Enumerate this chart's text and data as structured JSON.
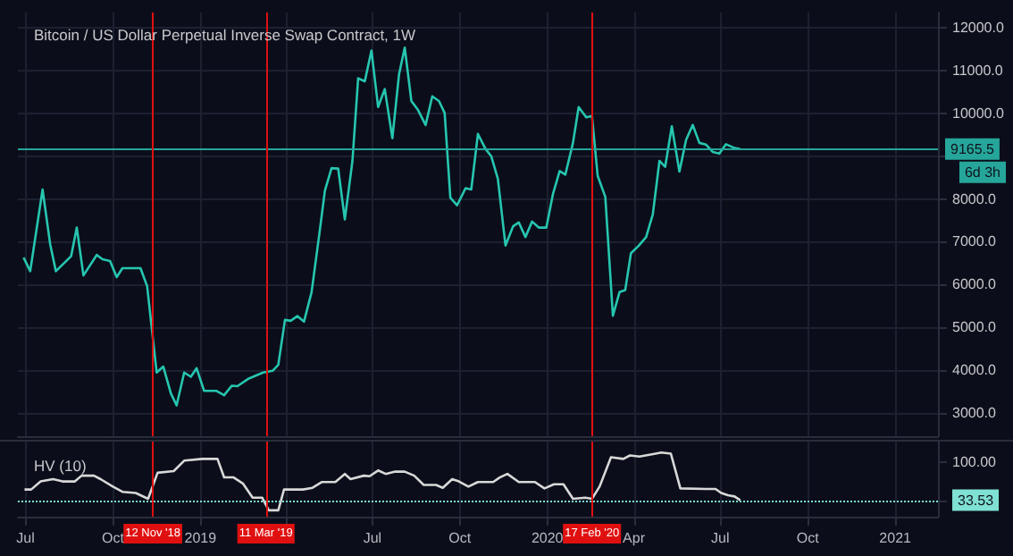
{
  "chart_data": [
    {
      "type": "line",
      "title": "Bitcoin / US Dollar Perpetual Inverse Swap Contract, 1W",
      "marker": "none",
      "grid": true,
      "tick_labels": "y",
      "x": [
        "2018-06-29",
        "2018-07-06",
        "2018-07-19",
        "2018-07-27",
        "2018-08-02",
        "2018-08-18",
        "2018-08-24",
        "2018-08-31",
        "2018-09-14",
        "2018-09-20",
        "2018-09-28",
        "2018-10-05",
        "2018-10-11",
        "2018-10-30",
        "2018-11-06",
        "2018-11-16",
        "2018-11-23",
        "2018-12-01",
        "2018-12-07",
        "2018-12-15",
        "2018-12-22",
        "2018-12-28",
        "2019-01-05",
        "2019-01-18",
        "2019-01-26",
        "2019-02-03",
        "2019-02-09",
        "2019-02-21",
        "2019-03-08",
        "2019-03-18",
        "2019-03-24",
        "2019-03-31",
        "2019-04-06",
        "2019-04-13",
        "2019-04-20",
        "2019-04-28",
        "2019-05-06",
        "2019-05-12",
        "2019-05-19",
        "2019-05-26",
        "2019-06-02",
        "2019-06-10",
        "2019-06-16",
        "2019-06-23",
        "2019-06-30",
        "2019-07-07",
        "2019-07-14",
        "2019-07-22",
        "2019-07-29",
        "2019-08-04",
        "2019-08-11",
        "2019-08-18",
        "2019-08-26",
        "2019-09-02",
        "2019-09-09",
        "2019-09-15",
        "2019-09-21",
        "2019-09-28",
        "2019-10-07",
        "2019-10-13",
        "2019-10-20",
        "2019-10-28",
        "2019-11-03",
        "2019-11-10",
        "2019-11-18",
        "2019-11-26",
        "2019-12-02",
        "2019-12-09",
        "2019-12-16",
        "2019-12-23",
        "2019-12-31",
        "2020-01-07",
        "2020-01-14",
        "2020-01-20",
        "2020-01-28",
        "2020-02-03",
        "2020-02-11",
        "2020-02-17",
        "2020-02-23",
        "2020-03-02",
        "2020-03-10",
        "2020-03-17",
        "2020-03-23",
        "2020-03-29",
        "2020-04-06",
        "2020-04-14",
        "2020-04-21",
        "2020-04-28",
        "2020-05-04",
        "2020-05-11",
        "2020-05-19",
        "2020-05-26",
        "2020-06-02",
        "2020-06-09",
        "2020-06-16",
        "2020-06-23",
        "2020-06-30",
        "2020-07-07",
        "2020-07-15",
        "2020-07-22"
      ],
      "series": [
        {
          "color": "#26c6b0",
          "values": [
            6630,
            6310,
            8220,
            6940,
            6310,
            6660,
            7330,
            6210,
            6690,
            6590,
            6550,
            6170,
            6380,
            6380,
            5960,
            3940,
            4080,
            3450,
            3170,
            3940,
            3840,
            4040,
            3510,
            3510,
            3410,
            3630,
            3620,
            3800,
            3940,
            3980,
            4120,
            5170,
            5150,
            5260,
            5130,
            5820,
            7150,
            8190,
            8720,
            8710,
            7520,
            8890,
            10820,
            10750,
            11470,
            10150,
            10570,
            9420,
            10910,
            11540,
            10290,
            10080,
            9730,
            10400,
            10290,
            10010,
            8030,
            7850,
            8250,
            8220,
            9520,
            9170,
            9000,
            8470,
            6910,
            7360,
            7450,
            7110,
            7470,
            7330,
            7330,
            8120,
            8650,
            8570,
            9310,
            10150,
            9910,
            9940,
            8540,
            8050,
            5270,
            5820,
            5870,
            6730,
            6900,
            7110,
            7640,
            8890,
            8750,
            9700,
            8640,
            9380,
            9730,
            9310,
            9270,
            9100,
            9060,
            9280,
            9200,
            9165.5
          ]
        }
      ],
      "xlim": [
        "2018-06-23",
        "2021-02-15"
      ],
      "xticks": [
        {
          "value": "2018-07-01",
          "label": null
        },
        {
          "value": "2018-10-01",
          "label": null
        },
        {
          "value": "2019-01-01",
          "label": null
        },
        {
          "value": "2019-04-01",
          "label": null
        },
        {
          "value": "2019-07-01",
          "label": null
        },
        {
          "value": "2019-10-01",
          "label": null
        },
        {
          "value": "2020-01-01",
          "label": null
        },
        {
          "value": "2020-04-01",
          "label": null
        },
        {
          "value": "2020-07-01",
          "label": null
        },
        {
          "value": "2020-10-01",
          "label": null
        },
        {
          "value": "2021-01-01",
          "label": null
        }
      ],
      "ylim": [
        2450,
        12360
      ],
      "yticks": [
        {
          "value": 3000,
          "label": "3000.0"
        },
        {
          "value": 4000,
          "label": "4000.0"
        },
        {
          "value": 5000,
          "label": "5000.0"
        },
        {
          "value": 6000,
          "label": "6000.0"
        },
        {
          "value": 7000,
          "label": "7000.0"
        },
        {
          "value": 8000,
          "label": "8000.0"
        },
        {
          "value": 9000,
          "label": null
        },
        {
          "value": 10000,
          "label": "10000.0"
        },
        {
          "value": 11000,
          "label": "11000.0"
        },
        {
          "value": 12000,
          "label": "12000.0"
        }
      ],
      "ref_lines": [
        {
          "axis": "y",
          "value": 9165.5,
          "label": "9165.5",
          "color": "#26a69a"
        },
        {
          "axis": "x",
          "value": "2018-11-12",
          "color": "#e01010"
        },
        {
          "axis": "x",
          "value": "2019-03-11",
          "color": "#e01010"
        },
        {
          "axis": "x",
          "value": "2020-02-17",
          "color": "#e01010"
        }
      ],
      "annotations": [
        "6d 3h"
      ]
    },
    {
      "type": "line",
      "title": "HV (10)",
      "marker": "none",
      "grid": "x",
      "x": [
        "2018-06-30",
        "2018-07-07",
        "2018-07-17",
        "2018-07-30",
        "2018-08-09",
        "2018-08-22",
        "2018-08-29",
        "2018-09-11",
        "2018-09-18",
        "2018-10-01",
        "2018-10-11",
        "2018-10-25",
        "2018-11-07",
        "2018-11-17",
        "2018-12-04",
        "2018-12-15",
        "2019-01-03",
        "2019-01-19",
        "2019-01-26",
        "2019-02-05",
        "2019-02-15",
        "2019-02-25",
        "2019-03-07",
        "2019-03-14",
        "2019-03-24",
        "2019-03-30",
        "2019-04-19",
        "2019-04-29",
        "2019-05-09",
        "2019-05-23",
        "2019-06-02",
        "2019-06-08",
        "2019-06-22",
        "2019-06-28",
        "2019-07-07",
        "2019-07-15",
        "2019-07-25",
        "2019-08-04",
        "2019-08-14",
        "2019-08-24",
        "2019-09-06",
        "2019-09-13",
        "2019-09-23",
        "2019-09-30",
        "2019-10-10",
        "2019-10-20",
        "2019-11-05",
        "2019-11-12",
        "2019-11-20",
        "2019-12-02",
        "2019-12-19",
        "2019-12-29",
        "2020-01-08",
        "2020-01-18",
        "2020-01-28",
        "2020-02-10",
        "2020-02-17",
        "2020-02-25",
        "2020-03-08",
        "2020-03-21",
        "2020-03-28",
        "2020-04-07",
        "2020-04-20",
        "2020-04-30",
        "2020-05-10",
        "2020-05-20",
        "2020-06-16",
        "2020-06-26",
        "2020-07-02",
        "2020-07-09",
        "2020-07-16",
        "2020-07-22"
      ],
      "series": [
        {
          "color": "#d8d8d8",
          "values": [
            52,
            52,
            66,
            70,
            66,
            66,
            76,
            76,
            70,
            57,
            48,
            46,
            36,
            81,
            84,
            102,
            105,
            105,
            73,
            73,
            62,
            38,
            38,
            16,
            16,
            52,
            52,
            55,
            65,
            65,
            79,
            70,
            76,
            75,
            85,
            79,
            83,
            83,
            76,
            60,
            60,
            55,
            70,
            66,
            57,
            65,
            65,
            73,
            79,
            65,
            65,
            54,
            61,
            61,
            36,
            38,
            36,
            57,
            108,
            105,
            111,
            109,
            113,
            116,
            114,
            54,
            53,
            53,
            46,
            42,
            40,
            33.53
          ]
        }
      ],
      "xlim": [
        "2018-06-23",
        "2021-02-15"
      ],
      "xticks": [
        {
          "value": "2018-07-01",
          "label": "Jul"
        },
        {
          "value": "2018-10-01",
          "label": "Oct"
        },
        {
          "value": "2019-01-01",
          "label": "2019"
        },
        {
          "value": "2019-04-01",
          "label": null
        },
        {
          "value": "2019-07-01",
          "label": "Jul"
        },
        {
          "value": "2019-10-01",
          "label": "Oct"
        },
        {
          "value": "2020-01-01",
          "label": "2020"
        },
        {
          "value": "2020-04-01",
          "label": "Apr"
        },
        {
          "value": "2020-07-01",
          "label": "Jul"
        },
        {
          "value": "2020-10-01",
          "label": "Oct"
        },
        {
          "value": "2021-01-01",
          "label": "2021"
        }
      ],
      "ylim": [
        5,
        135
      ],
      "yticks": [
        {
          "value": 33.53,
          "label": "33.53"
        },
        {
          "value": 100,
          "label": "100.00"
        }
      ],
      "ref_lines": [
        {
          "axis": "y",
          "value": 33.53,
          "color": "#7fe0d4",
          "line_style": "dotted"
        },
        {
          "axis": "x",
          "value": "2018-11-12",
          "label": "12 Nov '18",
          "color": "#e01010"
        },
        {
          "axis": "x",
          "value": "2019-03-11",
          "label": "11 Mar '19",
          "color": "#e01010"
        },
        {
          "axis": "x",
          "value": "2020-02-17",
          "label": "17 Feb '20",
          "color": "#e01010"
        }
      ]
    }
  ]
}
